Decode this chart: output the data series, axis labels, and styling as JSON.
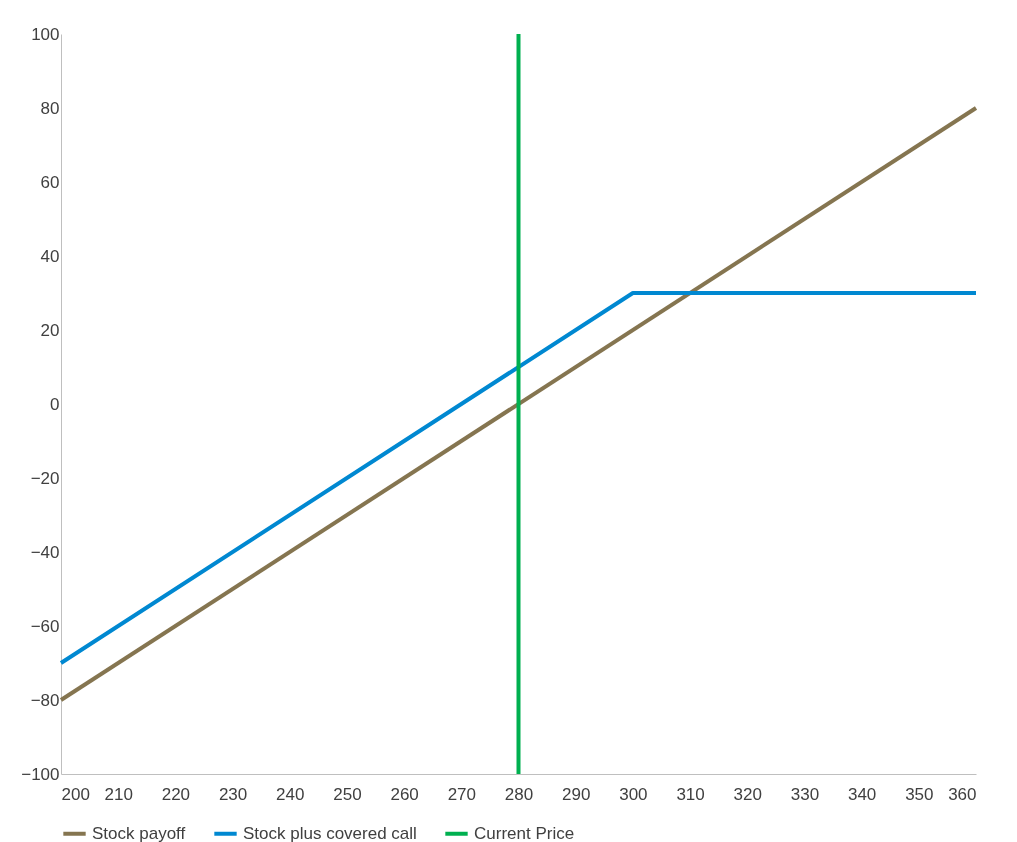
{
  "chart_data": {
    "type": "line",
    "xlim": [
      200,
      360
    ],
    "xticks": [
      200,
      210,
      220,
      230,
      240,
      250,
      260,
      270,
      280,
      290,
      300,
      310,
      320,
      330,
      340,
      350,
      360
    ],
    "ylim": [
      -100,
      100
    ],
    "yticks": [
      -100,
      -80,
      -60,
      -40,
      -20,
      0,
      20,
      40,
      60,
      80,
      100
    ],
    "grid": false,
    "legend": "bottom",
    "marker": "none",
    "line_style": "solid",
    "series": [
      {
        "name": "Stock payoff",
        "color": "#857550",
        "x": [
          200,
          360
        ],
        "values": [
          -80,
          80
        ]
      },
      {
        "name": "Stock plus covered call",
        "color": "#0088d1",
        "x": [
          200,
          300,
          360
        ],
        "values": [
          -70,
          30,
          30
        ]
      },
      {
        "name": "Current Price",
        "color": "#00b050",
        "x": [
          280,
          280
        ],
        "values": [
          -100,
          100
        ]
      }
    ]
  }
}
